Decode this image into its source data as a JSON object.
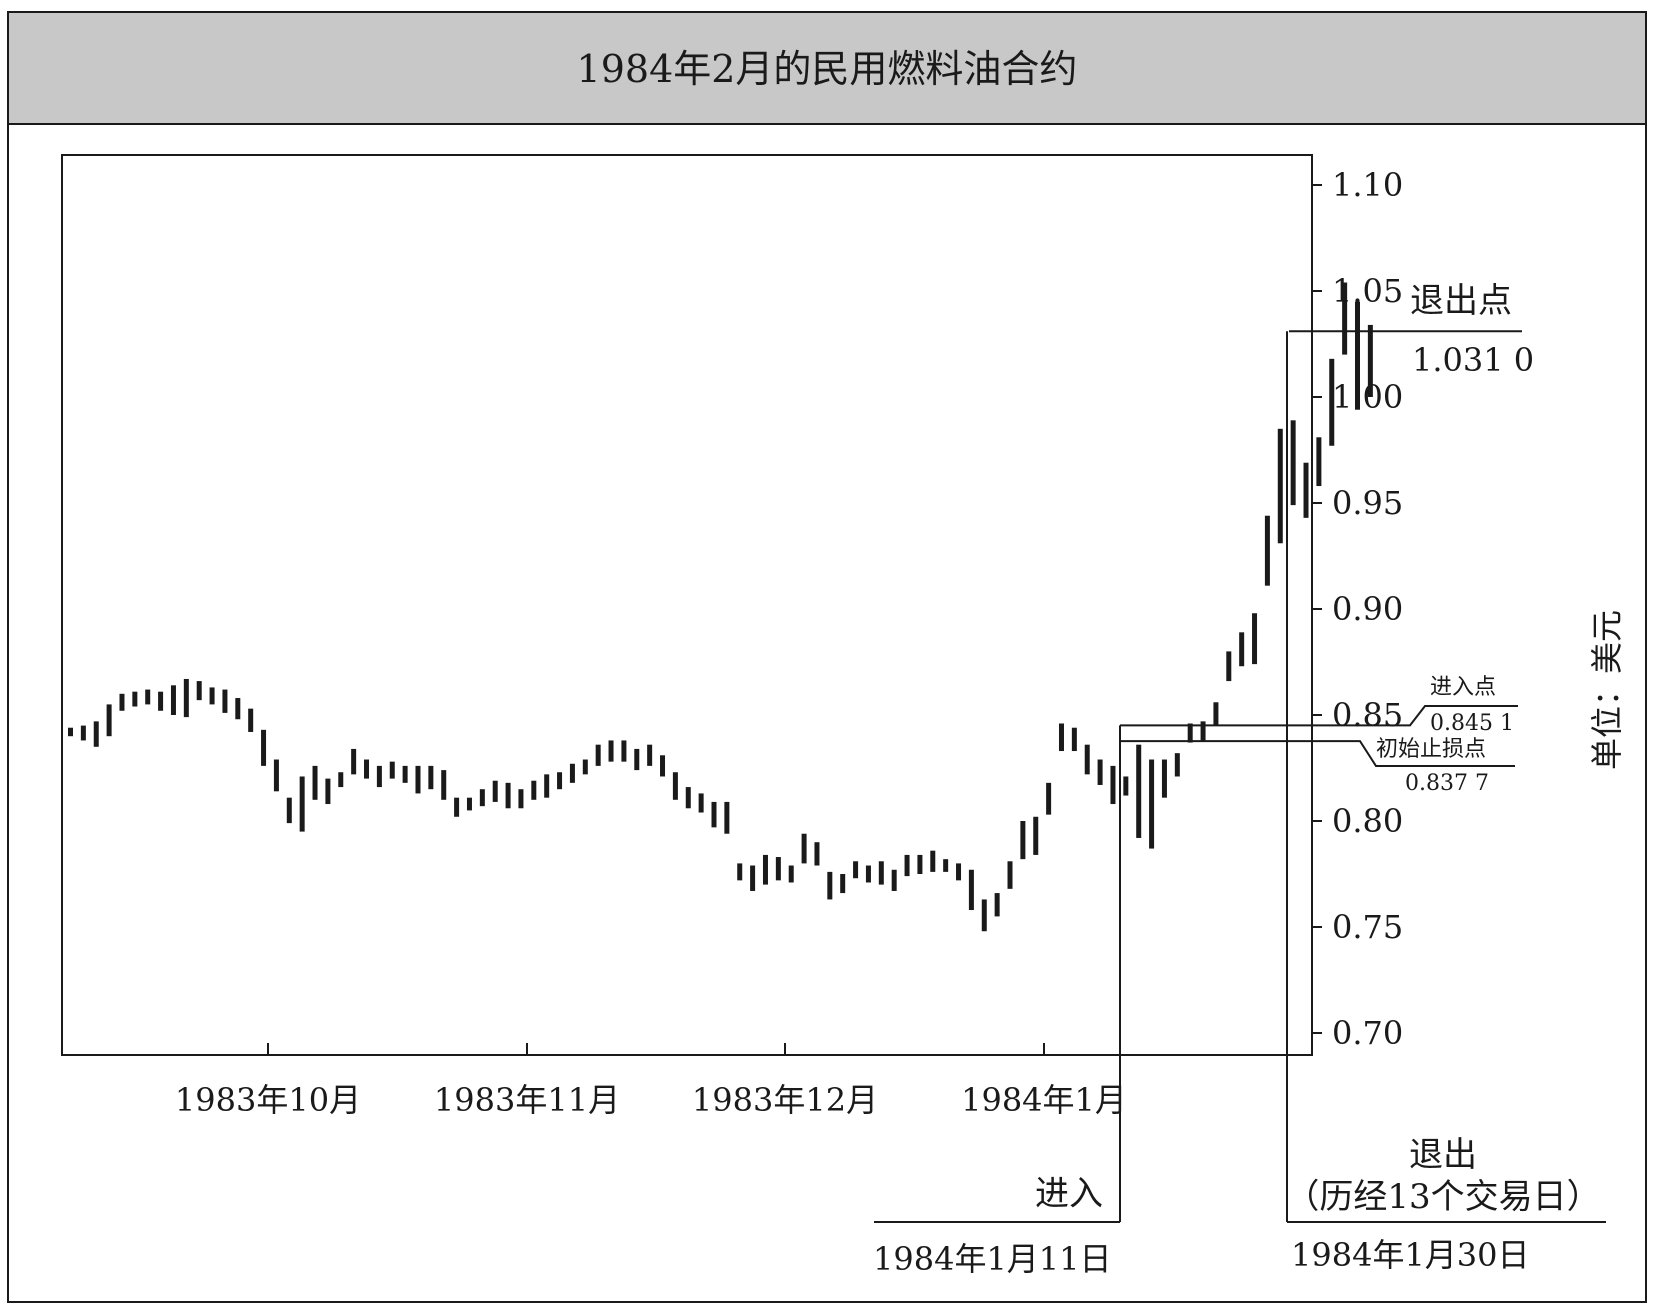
{
  "chart_data": {
    "type": "bar",
    "subtype": "ohlc-range-bars",
    "title": "1984年2月的民用燃料油合约",
    "ylabel": "单位：美元",
    "ylim": [
      0.69,
      1.11
    ],
    "yticks": [
      "0.70",
      "0.75",
      "0.80",
      "0.85",
      "0.90",
      "0.95",
      "1.00",
      "1.05",
      "1.10"
    ],
    "xticks": [
      "1983年10月",
      "1983年11月",
      "1983年12月",
      "1984年1月"
    ],
    "series": [
      {
        "bars": [
          [
            0.844,
            0.84
          ],
          [
            0.845,
            0.838
          ],
          [
            0.847,
            0.835
          ],
          [
            0.855,
            0.84
          ],
          [
            0.86,
            0.852
          ],
          [
            0.861,
            0.854
          ],
          [
            0.862,
            0.855
          ],
          [
            0.861,
            0.852
          ],
          [
            0.864,
            0.85
          ],
          [
            0.867,
            0.849
          ],
          [
            0.866,
            0.857
          ],
          [
            0.863,
            0.855
          ],
          [
            0.862,
            0.851
          ],
          [
            0.858,
            0.848
          ],
          [
            0.853,
            0.842
          ],
          [
            0.843,
            0.826
          ],
          [
            0.829,
            0.814
          ],
          [
            0.811,
            0.799
          ],
          [
            0.821,
            0.795
          ],
          [
            0.826,
            0.81
          ],
          [
            0.82,
            0.808
          ],
          [
            0.823,
            0.816
          ],
          [
            0.834,
            0.822
          ],
          [
            0.829,
            0.82
          ],
          [
            0.826,
            0.816
          ],
          [
            0.828,
            0.82
          ],
          [
            0.826,
            0.818
          ],
          [
            0.826,
            0.813
          ],
          [
            0.826,
            0.815
          ],
          [
            0.824,
            0.81
          ],
          [
            0.811,
            0.802
          ],
          [
            0.811,
            0.805
          ],
          [
            0.815,
            0.807
          ],
          [
            0.819,
            0.809
          ],
          [
            0.818,
            0.806
          ],
          [
            0.815,
            0.806
          ],
          [
            0.819,
            0.81
          ],
          [
            0.822,
            0.811
          ],
          [
            0.823,
            0.815
          ],
          [
            0.827,
            0.818
          ],
          [
            0.829,
            0.822
          ],
          [
            0.836,
            0.826
          ],
          [
            0.838,
            0.828
          ],
          [
            0.838,
            0.828
          ],
          [
            0.834,
            0.824
          ],
          [
            0.836,
            0.826
          ],
          [
            0.831,
            0.821
          ],
          [
            0.823,
            0.81
          ],
          [
            0.816,
            0.806
          ],
          [
            0.813,
            0.804
          ],
          [
            0.809,
            0.797
          ],
          [
            0.809,
            0.794
          ],
          [
            0.78,
            0.772
          ],
          [
            0.779,
            0.767
          ],
          [
            0.784,
            0.77
          ],
          [
            0.783,
            0.772
          ],
          [
            0.779,
            0.771
          ],
          [
            0.794,
            0.78
          ],
          [
            0.79,
            0.779
          ],
          [
            0.776,
            0.763
          ],
          [
            0.775,
            0.766
          ],
          [
            0.781,
            0.773
          ],
          [
            0.779,
            0.771
          ],
          [
            0.781,
            0.77
          ],
          [
            0.777,
            0.767
          ],
          [
            0.784,
            0.774
          ],
          [
            0.784,
            0.775
          ],
          [
            0.786,
            0.776
          ],
          [
            0.782,
            0.776
          ],
          [
            0.78,
            0.772
          ],
          [
            0.777,
            0.758
          ],
          [
            0.763,
            0.748
          ],
          [
            0.766,
            0.755
          ],
          [
            0.781,
            0.768
          ],
          [
            0.8,
            0.782
          ],
          [
            0.802,
            0.784
          ],
          [
            0.818,
            0.803
          ],
          [
            0.846,
            0.833
          ],
          [
            0.844,
            0.833
          ],
          [
            0.836,
            0.822
          ],
          [
            0.829,
            0.817
          ],
          [
            0.826,
            0.808
          ],
          [
            0.821,
            0.812
          ],
          [
            0.836,
            0.792
          ],
          [
            0.829,
            0.787
          ],
          [
            0.829,
            0.811
          ],
          [
            0.832,
            0.821
          ],
          [
            0.846,
            0.837
          ],
          [
            0.847,
            0.838
          ],
          [
            0.856,
            0.845
          ],
          [
            0.88,
            0.866
          ],
          [
            0.889,
            0.873
          ],
          [
            0.898,
            0.874
          ],
          [
            0.944,
            0.911
          ],
          [
            0.985,
            0.931
          ],
          [
            0.989,
            0.949
          ],
          [
            0.969,
            0.943
          ],
          [
            0.981,
            0.958
          ],
          [
            1.018,
            0.977
          ],
          [
            1.054,
            1.02
          ],
          [
            1.045,
            0.994
          ],
          [
            1.034,
            1.0
          ]
        ]
      }
    ],
    "annotations": {
      "exit_point_label": "退出点",
      "exit_point_value": "1.031 0",
      "exit_price": 1.031,
      "entry_point_label": "进入点",
      "entry_point_value": "0.845 1",
      "entry_price": 0.8451,
      "stop_label": "初始止损点",
      "stop_value": "0.837 7",
      "stop_price": 0.8377,
      "entry_label": "进入",
      "entry_date": "1984年1月11日",
      "exit_label": "退出",
      "exit_note": "（历经13个交易日）",
      "exit_date": "1984年1月30日"
    }
  }
}
